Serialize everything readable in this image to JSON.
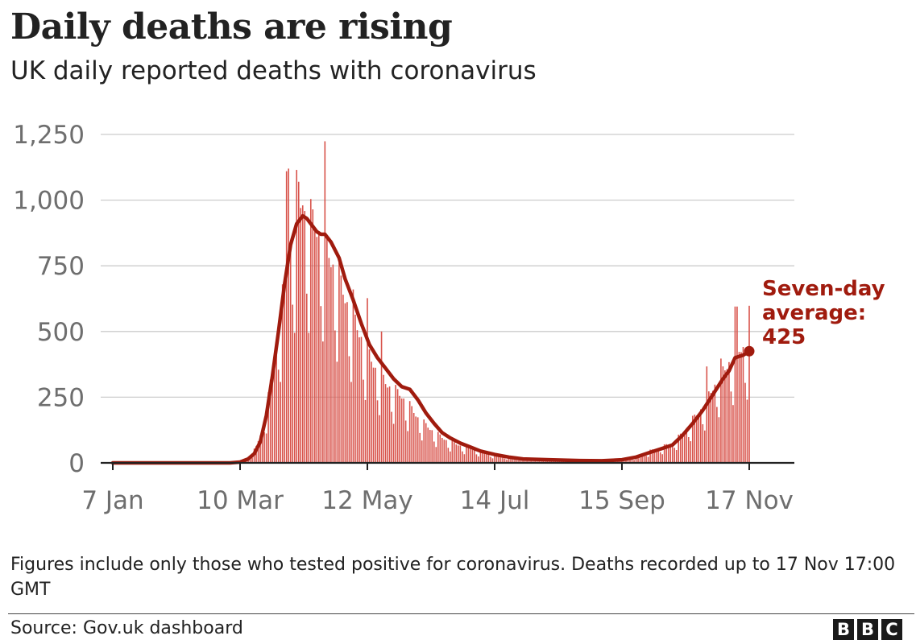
{
  "title": "Daily deaths are rising",
  "subtitle": "UK daily reported deaths with coronavirus",
  "footnote": "Figures include only those who tested positive for coronavirus. Deaths recorded up to 17 Nov 17:00 GMT",
  "source": "Source: Gov.uk dashboard",
  "logo": [
    "B",
    "B",
    "C"
  ],
  "colors": {
    "bars": "#d8534b",
    "average_line": "#a01b0e",
    "grid": "#cccccc",
    "baseline": "#222222",
    "tick_text": "#6e6e6e"
  },
  "chart_data": {
    "type": "bar",
    "x_axis": {
      "start_date": "2020-01-07",
      "end_date": "2020-11-17",
      "tick_labels": [
        "7 Jan",
        "10 Mar",
        "12 May",
        "14 Jul",
        "15 Sep",
        "17 Nov"
      ],
      "tick_dates": [
        "2020-01-07",
        "2020-03-10",
        "2020-05-12",
        "2020-07-14",
        "2020-09-15",
        "2020-11-17"
      ]
    },
    "y_axis": {
      "ylim": [
        0,
        1250
      ],
      "ticks": [
        0,
        250,
        500,
        750,
        1000,
        1250
      ],
      "tick_labels": [
        "0",
        "250",
        "500",
        "750",
        "1,000",
        "1,250"
      ]
    },
    "grid": true,
    "series": [
      {
        "name": "Daily reported deaths",
        "kind": "bar",
        "anchors": [
          [
            "2020-01-07",
            0
          ],
          [
            "2020-03-05",
            0
          ],
          [
            "2020-03-08",
            2
          ],
          [
            "2020-03-12",
            8
          ],
          [
            "2020-03-15",
            25
          ],
          [
            "2020-03-18",
            60
          ],
          [
            "2020-03-21",
            130
          ],
          [
            "2020-03-24",
            240
          ],
          [
            "2020-03-27",
            400
          ],
          [
            "2020-03-30",
            560
          ],
          [
            "2020-04-02",
            700
          ],
          [
            "2020-04-05",
            860
          ],
          [
            "2020-04-08",
            980
          ],
          [
            "2020-04-10",
            960
          ],
          [
            "2020-04-13",
            900
          ],
          [
            "2020-04-16",
            890
          ],
          [
            "2020-04-20",
            840
          ],
          [
            "2020-04-23",
            780
          ],
          [
            "2020-04-27",
            700
          ],
          [
            "2020-05-01",
            620
          ],
          [
            "2020-05-05",
            540
          ],
          [
            "2020-05-09",
            470
          ],
          [
            "2020-05-13",
            400
          ],
          [
            "2020-05-17",
            340
          ],
          [
            "2020-05-21",
            300
          ],
          [
            "2020-05-25",
            270
          ],
          [
            "2020-05-29",
            250
          ],
          [
            "2020-06-02",
            210
          ],
          [
            "2020-06-06",
            170
          ],
          [
            "2020-06-10",
            140
          ],
          [
            "2020-06-15",
            110
          ],
          [
            "2020-06-20",
            85
          ],
          [
            "2020-06-25",
            70
          ],
          [
            "2020-07-01",
            55
          ],
          [
            "2020-07-08",
            40
          ],
          [
            "2020-07-15",
            28
          ],
          [
            "2020-07-22",
            22
          ],
          [
            "2020-07-29",
            16
          ],
          [
            "2020-08-10",
            12
          ],
          [
            "2020-08-25",
            10
          ],
          [
            "2020-09-05",
            10
          ],
          [
            "2020-09-15",
            14
          ],
          [
            "2020-09-22",
            22
          ],
          [
            "2020-09-29",
            45
          ],
          [
            "2020-10-05",
            60
          ],
          [
            "2020-10-10",
            75
          ],
          [
            "2020-10-15",
            110
          ],
          [
            "2020-10-20",
            160
          ],
          [
            "2020-10-25",
            210
          ],
          [
            "2020-10-30",
            280
          ],
          [
            "2020-11-04",
            340
          ],
          [
            "2020-11-09",
            400
          ],
          [
            "2020-11-13",
            430
          ],
          [
            "2020-11-17",
            440
          ]
        ],
        "weekly_pattern": [
          1.12,
          1.08,
          1.0,
          0.98,
          1.02,
          0.7,
          0.55
        ],
        "peak_bars": [
          [
            "2020-04-02",
            1110
          ],
          [
            "2020-04-03",
            1120
          ],
          [
            "2020-04-07",
            1115
          ],
          [
            "2020-04-08",
            1070
          ],
          [
            "2020-04-10",
            980
          ],
          [
            "2020-04-21",
            1224
          ],
          [
            "2020-05-05",
            660
          ],
          [
            "2020-05-12",
            627
          ],
          [
            "2020-05-19",
            500
          ],
          [
            "2020-10-27",
            367
          ],
          [
            "2020-11-03",
            397
          ],
          [
            "2020-11-10",
            595
          ],
          [
            "2020-11-11",
            595
          ],
          [
            "2020-11-17",
            598
          ]
        ]
      },
      {
        "name": "Seven-day average",
        "kind": "line",
        "points": [
          [
            "2020-01-07",
            0
          ],
          [
            "2020-03-05",
            0
          ],
          [
            "2020-03-10",
            3
          ],
          [
            "2020-03-14",
            15
          ],
          [
            "2020-03-17",
            35
          ],
          [
            "2020-03-20",
            80
          ],
          [
            "2020-03-23",
            180
          ],
          [
            "2020-03-26",
            330
          ],
          [
            "2020-03-29",
            500
          ],
          [
            "2020-04-01",
            680
          ],
          [
            "2020-04-04",
            830
          ],
          [
            "2020-04-07",
            910
          ],
          [
            "2020-04-10",
            940
          ],
          [
            "2020-04-12",
            930
          ],
          [
            "2020-04-15",
            900
          ],
          [
            "2020-04-17",
            880
          ],
          [
            "2020-04-19",
            870
          ],
          [
            "2020-04-21",
            870
          ],
          [
            "2020-04-24",
            840
          ],
          [
            "2020-04-28",
            780
          ],
          [
            "2020-05-01",
            700
          ],
          [
            "2020-05-05",
            620
          ],
          [
            "2020-05-09",
            530
          ],
          [
            "2020-05-13",
            450
          ],
          [
            "2020-05-17",
            400
          ],
          [
            "2020-05-21",
            360
          ],
          [
            "2020-05-25",
            320
          ],
          [
            "2020-05-29",
            290
          ],
          [
            "2020-06-02",
            280
          ],
          [
            "2020-06-06",
            240
          ],
          [
            "2020-06-10",
            190
          ],
          [
            "2020-06-14",
            150
          ],
          [
            "2020-06-18",
            115
          ],
          [
            "2020-06-22",
            95
          ],
          [
            "2020-06-27",
            75
          ],
          [
            "2020-07-02",
            60
          ],
          [
            "2020-07-07",
            45
          ],
          [
            "2020-07-14",
            32
          ],
          [
            "2020-07-21",
            22
          ],
          [
            "2020-07-28",
            15
          ],
          [
            "2020-08-10",
            12
          ],
          [
            "2020-08-25",
            9
          ],
          [
            "2020-09-05",
            8
          ],
          [
            "2020-09-15",
            12
          ],
          [
            "2020-09-22",
            22
          ],
          [
            "2020-09-29",
            40
          ],
          [
            "2020-10-05",
            55
          ],
          [
            "2020-10-10",
            68
          ],
          [
            "2020-10-15",
            105
          ],
          [
            "2020-10-20",
            150
          ],
          [
            "2020-10-25",
            200
          ],
          [
            "2020-10-30",
            260
          ],
          [
            "2020-11-04",
            320
          ],
          [
            "2020-11-07",
            350
          ],
          [
            "2020-11-10",
            400
          ],
          [
            "2020-11-14",
            410
          ],
          [
            "2020-11-17",
            425
          ]
        ]
      }
    ],
    "annotation": {
      "lines": [
        "Seven-day",
        "average:",
        "425"
      ],
      "value": 425,
      "date": "2020-11-17"
    }
  }
}
